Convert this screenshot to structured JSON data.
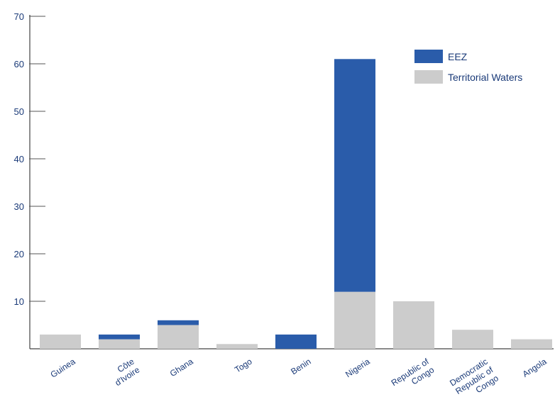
{
  "chart_data": {
    "type": "bar",
    "stacked": true,
    "categories": [
      [
        "Guinea"
      ],
      [
        "Côte",
        "d'Ivoire"
      ],
      [
        "Ghana"
      ],
      [
        "Togo"
      ],
      [
        "Benin"
      ],
      [
        "Nigeria"
      ],
      [
        "Republic of",
        "Congo"
      ],
      [
        "Democratic",
        "Republic of",
        "Congo"
      ],
      [
        "Angola"
      ]
    ],
    "series": [
      {
        "name": "Territorial Waters",
        "color": "#cccccc",
        "values": [
          3,
          2,
          5,
          1,
          0,
          12,
          10,
          4,
          2
        ]
      },
      {
        "name": "EEZ",
        "color": "#2a5caa",
        "values": [
          0,
          1,
          1,
          0,
          3,
          49,
          0,
          0,
          0
        ]
      }
    ],
    "legend_order": [
      "EEZ",
      "Territorial Waters"
    ],
    "legend_position": "top-right",
    "ylim": [
      0,
      70
    ],
    "yticks": [
      10,
      20,
      30,
      40,
      50,
      60,
      70
    ],
    "grid": false,
    "title": "",
    "xlabel": "",
    "ylabel": ""
  }
}
